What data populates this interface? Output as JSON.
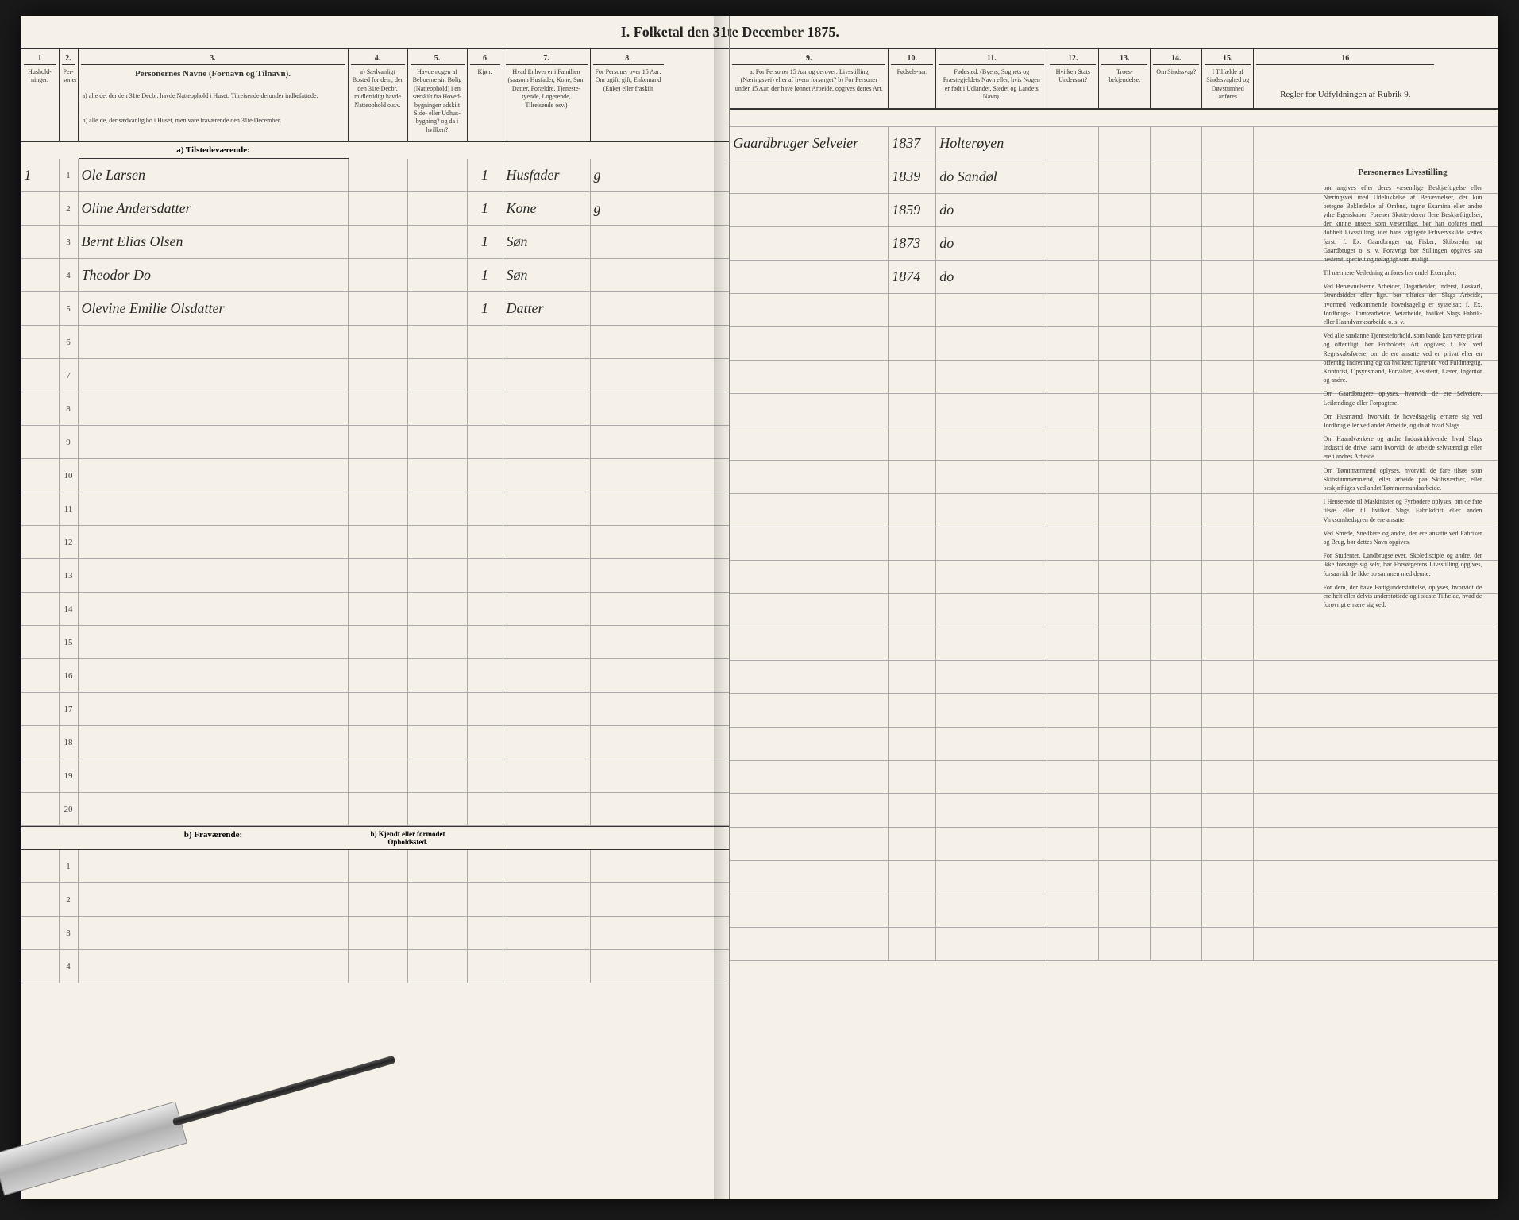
{
  "title": "I. Folketal den 31te December 1875.",
  "left_headers": {
    "c1": {
      "num": "1",
      "text": "Hushold-ninger."
    },
    "c2": {
      "num": "2.",
      "text": "Per-soner"
    },
    "c3": {
      "num": "3.",
      "text": "Personernes Navne (Fornavn og Tilnavn).",
      "sub_a": "a) alle de, der den 31te Decbr. havde Natteophold i Huset, Tilreisende derunder indbefattede;",
      "sub_b": "b) alle de, der sædvanlig bo i Huset, men vare fraværende den 31te December."
    },
    "c4": {
      "num": "4.",
      "text": "a) Sædvanligt Bosted for dem, der den 31te Decbr. midlertidigt havde Natteophold o.s.v."
    },
    "c5": {
      "num": "5.",
      "text": "Havde nogen af Beboerne sin Bolig (Natteophold) i en særskilt fra Hoved-bygningen adskilt Side- eller Udhus-bygning? og da i hvilken?"
    },
    "c6": {
      "num": "6",
      "text": "Kjøn."
    },
    "c7": {
      "num": "7.",
      "text": "Hvad Enhver er i Familien (saasom Husfader, Kone, Søn, Datter, Forældre, Tjeneste-tyende, Logerende, Tilreisende osv.)"
    },
    "c8": {
      "num": "8.",
      "text": "For Personer over 15 Aar: Om ugift, gift, Enkemand (Enke) eller fraskilt"
    }
  },
  "right_headers": {
    "c9": {
      "num": "9.",
      "text": "a. For Personer 15 Aar og derover: Livsstilling (Næringsvei) eller af hvem forsørget? b) For Personer under 15 Aar, der have lønnet Arbeide, opgives dettes Art."
    },
    "c10": {
      "num": "10.",
      "text": "Fødsels-aar."
    },
    "c11": {
      "num": "11.",
      "text": "Fødested. (Byens, Sognets og Præstegjeldets Navn eller, hvis Nogen er født i Udlandet, Stedet og Landets Navn)."
    },
    "c12": {
      "num": "12.",
      "text": "Hvilken Stats Undersaat?"
    },
    "c13": {
      "num": "13.",
      "text": "Troes-bekjendelse."
    },
    "c14": {
      "num": "14.",
      "text": "Om Sindssvag?"
    },
    "c15": {
      "num": "15.",
      "text": "I Tilfælde af Sindssvaghed og Døvstumhed anføres"
    },
    "c16": {
      "num": "16",
      "text": "Regler for Udfyldningen af Rubrik 9."
    }
  },
  "section_tilstedevaerende": "a) Tilstedeværende:",
  "section_fravaerende": "b) Fraværende:",
  "section_kjendt": "b) Kjendt eller formodet Opholdssted.",
  "rows": [
    {
      "n": "1",
      "name": "Ole Larsen",
      "c6": "1",
      "c7": "Husfader",
      "c8": "g",
      "c9": "Gaardbruger Selveier",
      "c10": "1837",
      "c11": "Holterøyen"
    },
    {
      "n": "2",
      "name": "Oline Andersdatter",
      "c6": "1",
      "c7": "Kone",
      "c8": "g",
      "c9": "",
      "c10": "1839",
      "c11": "do Sandøl"
    },
    {
      "n": "3",
      "name": "Bernt Elias Olsen",
      "c6": "1",
      "c7": "Søn",
      "c8": "",
      "c9": "",
      "c10": "1859",
      "c11": "do"
    },
    {
      "n": "4",
      "name": "Theodor Do",
      "c6": "1",
      "c7": "Søn",
      "c8": "",
      "c9": "",
      "c10": "1873",
      "c11": "do"
    },
    {
      "n": "5",
      "name": "Olevine Emilie Olsdatter",
      "c6": "1",
      "c7": "Datter",
      "c8": "",
      "c9": "",
      "c10": "1874",
      "c11": "do"
    }
  ],
  "empty_rows": [
    "6",
    "7",
    "8",
    "9",
    "10",
    "11",
    "12",
    "13",
    "14",
    "15",
    "16",
    "17",
    "18",
    "19",
    "20"
  ],
  "absent_rows": [
    "1",
    "2",
    "3",
    "4"
  ],
  "rules_heading": "Personernes Livsstilling",
  "rules_body": "bør angives efter deres væsentlige Beskjæftigelse eller Næringsvei med Udelukkelse af Benævnelser, der kun betegne Beklædelse af Ombud, tagne Examina eller andre ydre Egenskaber. Forener Skatteyderen flere Beskjæftigelser, der kunne ansees som væsentlige, bør han opføres med dobbelt Livsstilling, idet hans vigtigste Erhvervskilde sættes først; f. Ex. Gaardbruger og Fisker; Skibsreder og Gaardbruger o. s. v. Foravrigt bør Stillingen opgives saa bestemt, specielt og nøiagtigt som muligt.",
  "rules_p2": "Til nærmere Veiledning anføres her endel Exempler:",
  "rules_p3": "Ved Benævnelserne Arbeider, Dagarbeider, Inderst, Løskarl, Strandsidder eller lign. bør tilføies det Slags Arbeide, hvormed vedkommende hovedsagelig er sysselsat; f. Ex. Jordbrugs-, Tomtearbeide, Veiarbeide, hvilket Slags Fabrik- eller Haandværksarbeide o. s. v.",
  "rules_p4": "Ved alle saadanne Tjenesteforhold, som baade kan være privat og offentligt, bør Forholdets Art opgives; f. Ex. ved Regnskabsførere, om de ere ansatte ved en privat eller en offentlig Indretning og da hvilken; lignende ved Fuldmægtig, Kontorist, Opsynsmand, Forvalter, Assistent, Lærer, Ingeniør og andre.",
  "rules_p5": "Om Gaardbrugere oplyses, hvorvidt de ere Selveiere, Leilændinge eller Forpagtere.",
  "rules_p6": "Om Husmænd, hvorvidt de hovedsagelig ernære sig ved Jordbrug eller ved andet Arbeide, og da af hvad Slags.",
  "rules_p7": "Om Haandværkere og andre Industridrivende, hvad Slags Industri de drive, samt hvorvidt de arbeide selvstændigt eller ere i andres Arbeide.",
  "rules_p8": "Om Tømtmærmend oplyses, hvorvidt de fare tilsøs som Skibstømmermænd, eller arbeide paa Skibsværfter, eller beskjæftiges ved andet Tømmermandsarbeide.",
  "rules_p9": "I Henseende til Maskinister og Fyrbødere oplyses, om de fare tilsøs eller til hvilket Slags Fabrikdrift eller anden Virksomhedsgren de ere ansatte.",
  "rules_p10": "Ved Smede, Snedkere og andre, der ere ansatte ved Fabriker og Brug, bør dettes Navn opgives.",
  "rules_p11": "For Studenter, Landbrugselever, Skoledisciple og andre, der ikke forsørge sig selv, bør Forsørgerens Livsstilling opgives, forsaavidt de ikke bo sammen med denne.",
  "rules_p12": "For dem, der have Fattigunderstøttelse, oplyses, hvorvidt de ere helt eller delvis understøttede og i sidste Tilfælde, hvad de forøvrigt ernære sig ved."
}
